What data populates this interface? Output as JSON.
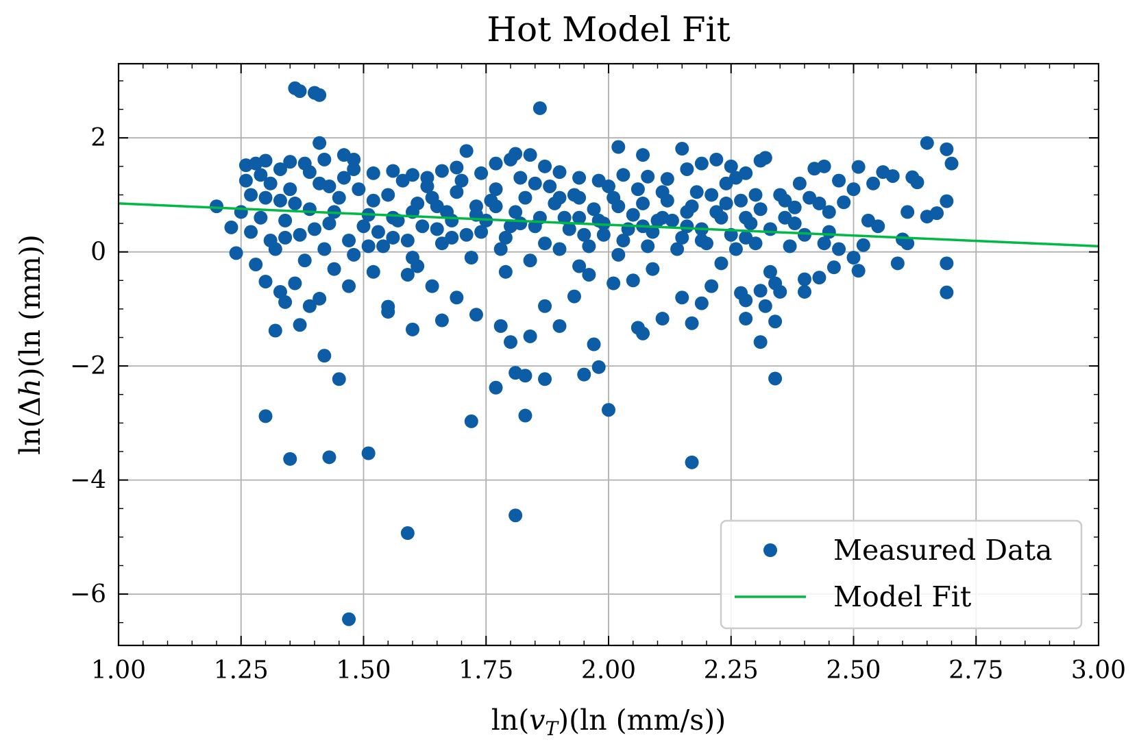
{
  "chart_data": {
    "type": "scatter",
    "title": "Hot Model Fit",
    "xlabel": "ln(v_T)(ln (mm/s))",
    "xlabel_parts": {
      "pre": "ln(",
      "var": "v",
      "sub": "T",
      "post": ")(ln (mm/s))"
    },
    "ylabel": "ln(Δh)(ln (mm))",
    "ylabel_parts": {
      "pre": "ln(Δ",
      "var": "h",
      "post": ")(ln (mm))"
    },
    "xlim": [
      1.0,
      3.0
    ],
    "ylim": [
      -6.9,
      3.3
    ],
    "xticks": [
      "1.00",
      "1.25",
      "1.50",
      "1.75",
      "2.00",
      "2.25",
      "2.50",
      "2.75",
      "3.00"
    ],
    "yticks": [
      "2",
      "0",
      "−2",
      "−4",
      "−6"
    ],
    "grid": true,
    "legend_position": "lower-right",
    "colors": {
      "measured": "#0C5DA5",
      "fit": "#00B945"
    },
    "series": [
      {
        "name": "Measured Data",
        "kind": "scatter",
        "points": [
          [
            1.36,
            2.87
          ],
          [
            1.37,
            2.82
          ],
          [
            1.4,
            2.79
          ],
          [
            1.41,
            2.75
          ],
          [
            1.86,
            2.52
          ],
          [
            1.41,
            1.91
          ],
          [
            2.02,
            1.84
          ],
          [
            2.15,
            1.81
          ],
          [
            2.07,
            1.7
          ],
          [
            1.81,
            1.72
          ],
          [
            1.71,
            1.77
          ],
          [
            2.65,
            1.91
          ],
          [
            2.69,
            1.8
          ],
          [
            2.7,
            1.55
          ],
          [
            2.51,
            1.49
          ],
          [
            2.44,
            1.5
          ],
          [
            2.42,
            1.46
          ],
          [
            2.39,
            1.2
          ],
          [
            2.47,
            1.25
          ],
          [
            2.56,
            1.4
          ],
          [
            2.58,
            1.33
          ],
          [
            2.62,
            1.31
          ],
          [
            2.63,
            1.22
          ],
          [
            2.54,
            1.2
          ],
          [
            2.5,
            1.1
          ],
          [
            2.48,
            0.87
          ],
          [
            2.53,
            0.55
          ],
          [
            2.55,
            0.45
          ],
          [
            2.61,
            0.7
          ],
          [
            2.65,
            0.62
          ],
          [
            2.67,
            0.68
          ],
          [
            2.69,
            0.89
          ],
          [
            2.6,
            0.22
          ],
          [
            2.61,
            0.15
          ],
          [
            2.69,
            -0.2
          ],
          [
            2.69,
            -0.71
          ],
          [
            2.59,
            -0.2
          ],
          [
            2.52,
            0.12
          ],
          [
            2.5,
            -0.1
          ],
          [
            2.51,
            -0.33
          ],
          [
            2.46,
            -0.27
          ],
          [
            2.45,
            0.35
          ],
          [
            2.43,
            -0.45
          ],
          [
            2.4,
            -0.48
          ],
          [
            2.4,
            -0.7
          ],
          [
            2.37,
            0.1
          ],
          [
            2.35,
            -0.7
          ],
          [
            2.34,
            -0.55
          ],
          [
            2.33,
            -0.35
          ],
          [
            2.32,
            -0.95
          ],
          [
            2.31,
            -1.58
          ],
          [
            2.34,
            -1.22
          ],
          [
            2.28,
            -1.17
          ],
          [
            2.28,
            -0.85
          ],
          [
            2.27,
            -0.72
          ],
          [
            2.34,
            -2.22
          ],
          [
            2.31,
            -0.68
          ],
          [
            1.2,
            0.8
          ],
          [
            1.23,
            0.43
          ],
          [
            1.24,
            -0.02
          ],
          [
            1.28,
            -0.22
          ],
          [
            1.3,
            -0.52
          ],
          [
            1.33,
            -0.7
          ],
          [
            1.34,
            -0.88
          ],
          [
            1.36,
            -0.55
          ],
          [
            1.32,
            -1.38
          ],
          [
            1.37,
            -1.28
          ],
          [
            1.39,
            -0.95
          ],
          [
            1.41,
            -0.82
          ],
          [
            1.42,
            -1.82
          ],
          [
            1.45,
            -2.23
          ],
          [
            1.3,
            -2.88
          ],
          [
            1.35,
            -3.63
          ],
          [
            1.43,
            -3.6
          ],
          [
            1.51,
            -3.53
          ],
          [
            1.59,
            -4.93
          ],
          [
            1.47,
            -6.44
          ],
          [
            1.72,
            -2.97
          ],
          [
            1.77,
            -2.38
          ],
          [
            1.81,
            -2.12
          ],
          [
            1.83,
            -2.17
          ],
          [
            1.87,
            -2.23
          ],
          [
            1.83,
            -2.87
          ],
          [
            1.81,
            -4.62
          ],
          [
            1.95,
            -2.15
          ],
          [
            1.98,
            -2.02
          ],
          [
            2.0,
            -2.77
          ],
          [
            1.97,
            -1.62
          ],
          [
            1.8,
            -1.58
          ],
          [
            2.17,
            -3.69
          ],
          [
            1.55,
            -0.96
          ],
          [
            1.55,
            -1.05
          ],
          [
            1.6,
            -1.36
          ],
          [
            1.66,
            -1.2
          ],
          [
            1.73,
            -1.1
          ],
          [
            1.78,
            -1.3
          ],
          [
            1.84,
            -1.48
          ],
          [
            1.87,
            -0.95
          ],
          [
            1.9,
            -1.3
          ],
          [
            1.93,
            -0.78
          ],
          [
            2.06,
            -1.33
          ],
          [
            2.07,
            -1.43
          ],
          [
            2.11,
            -1.17
          ],
          [
            2.15,
            -0.8
          ],
          [
            2.17,
            -1.25
          ],
          [
            2.19,
            -0.9
          ],
          [
            2.21,
            -0.6
          ],
          [
            2.05,
            -0.5
          ],
          [
            2.01,
            -0.55
          ],
          [
            1.96,
            -0.4
          ],
          [
            1.69,
            -0.8
          ],
          [
            1.64,
            -0.6
          ],
          [
            1.59,
            -0.4
          ],
          [
            1.52,
            -0.35
          ],
          [
            1.47,
            -0.6
          ],
          [
            1.26,
            1.52
          ],
          [
            1.28,
            1.55
          ],
          [
            1.3,
            1.6
          ],
          [
            1.33,
            1.45
          ],
          [
            1.35,
            1.58
          ],
          [
            1.38,
            1.55
          ],
          [
            1.42,
            1.62
          ],
          [
            1.46,
            1.7
          ],
          [
            1.48,
            1.62
          ],
          [
            1.52,
            1.38
          ],
          [
            1.56,
            1.42
          ],
          [
            1.6,
            1.35
          ],
          [
            1.63,
            1.3
          ],
          [
            1.66,
            1.42
          ],
          [
            1.69,
            1.48
          ],
          [
            1.74,
            1.38
          ],
          [
            1.77,
            1.55
          ],
          [
            1.8,
            1.62
          ],
          [
            1.84,
            1.7
          ],
          [
            1.87,
            1.5
          ],
          [
            1.9,
            1.4
          ],
          [
            1.94,
            1.3
          ],
          [
            1.98,
            1.25
          ],
          [
            2.03,
            1.35
          ],
          [
            2.08,
            1.32
          ],
          [
            2.12,
            1.28
          ],
          [
            2.16,
            1.45
          ],
          [
            2.19,
            1.55
          ],
          [
            2.22,
            1.62
          ],
          [
            2.25,
            1.5
          ],
          [
            2.28,
            1.38
          ],
          [
            2.31,
            1.6
          ],
          [
            2.32,
            1.65
          ],
          [
            2.35,
            1.0
          ],
          [
            2.36,
            0.9
          ],
          [
            2.38,
            0.78
          ],
          [
            2.41,
            0.95
          ],
          [
            2.43,
            0.85
          ],
          [
            2.45,
            0.7
          ],
          [
            2.38,
            0.5
          ],
          [
            2.4,
            0.3
          ],
          [
            2.44,
            0.15
          ],
          [
            2.47,
            0.05
          ],
          [
            2.36,
            0.6
          ],
          [
            2.33,
            0.4
          ],
          [
            1.26,
            1.25
          ],
          [
            1.27,
            1.0
          ],
          [
            1.29,
            0.6
          ],
          [
            1.31,
            0.2
          ],
          [
            1.33,
            0.9
          ],
          [
            1.35,
            1.1
          ],
          [
            1.37,
            0.3
          ],
          [
            1.39,
            0.75
          ],
          [
            1.41,
            1.2
          ],
          [
            1.43,
            0.5
          ],
          [
            1.45,
            0.95
          ],
          [
            1.47,
            0.2
          ],
          [
            1.49,
            1.1
          ],
          [
            1.51,
            0.65
          ],
          [
            1.53,
            0.35
          ],
          [
            1.55,
            1.0
          ],
          [
            1.57,
            0.55
          ],
          [
            1.59,
            0.2
          ],
          [
            1.61,
            0.85
          ],
          [
            1.63,
            1.15
          ],
          [
            1.65,
            0.4
          ],
          [
            1.67,
            0.7
          ],
          [
            1.69,
            1.05
          ],
          [
            1.71,
            0.3
          ],
          [
            1.73,
            0.8
          ],
          [
            1.75,
            0.55
          ],
          [
            1.77,
            1.1
          ],
          [
            1.79,
            0.25
          ],
          [
            1.81,
            0.7
          ],
          [
            1.83,
            0.95
          ],
          [
            1.85,
            0.45
          ],
          [
            1.87,
            0.15
          ],
          [
            1.89,
            0.85
          ],
          [
            1.91,
            0.6
          ],
          [
            1.93,
            1.0
          ],
          [
            1.95,
            0.3
          ],
          [
            1.97,
            0.75
          ],
          [
            1.99,
            0.5
          ],
          [
            2.01,
            0.95
          ],
          [
            2.03,
            0.2
          ],
          [
            2.05,
            0.65
          ],
          [
            2.07,
            0.85
          ],
          [
            2.09,
            0.35
          ],
          [
            2.11,
            1.05
          ],
          [
            2.13,
            0.55
          ],
          [
            2.15,
            0.25
          ],
          [
            2.17,
            0.8
          ],
          [
            2.19,
            0.4
          ],
          [
            2.21,
            1.0
          ],
          [
            2.23,
            0.6
          ],
          [
            2.25,
            0.3
          ],
          [
            2.27,
            0.9
          ],
          [
            2.29,
            0.5
          ],
          [
            2.3,
            0.15
          ],
          [
            2.31,
            0.75
          ],
          [
            1.27,
            0.35
          ],
          [
            1.3,
            0.95
          ],
          [
            1.32,
            0.05
          ],
          [
            1.34,
            0.55
          ],
          [
            1.36,
            0.85
          ],
          [
            1.38,
            -0.15
          ],
          [
            1.4,
            0.4
          ],
          [
            1.42,
            0.05
          ],
          [
            1.44,
            0.7
          ],
          [
            1.46,
            1.3
          ],
          [
            1.48,
            -0.05
          ],
          [
            1.5,
            0.45
          ],
          [
            1.52,
            0.9
          ],
          [
            1.54,
            0.1
          ],
          [
            1.56,
            0.6
          ],
          [
            1.58,
            1.25
          ],
          [
            1.6,
            -0.1
          ],
          [
            1.62,
            0.45
          ],
          [
            1.64,
            0.95
          ],
          [
            1.66,
            0.15
          ],
          [
            1.68,
            0.55
          ],
          [
            1.7,
            1.25
          ],
          [
            1.72,
            -0.1
          ],
          [
            1.74,
            0.35
          ],
          [
            1.76,
            0.9
          ],
          [
            1.78,
            0.05
          ],
          [
            1.8,
            0.45
          ],
          [
            1.82,
            1.3
          ],
          [
            1.84,
            -0.15
          ],
          [
            1.86,
            0.6
          ],
          [
            1.88,
            1.15
          ],
          [
            1.9,
            0.05
          ],
          [
            1.92,
            0.4
          ],
          [
            1.94,
            0.95
          ],
          [
            1.96,
            0.1
          ],
          [
            1.98,
            0.55
          ],
          [
            2.0,
            1.15
          ],
          [
            2.02,
            -0.05
          ],
          [
            2.04,
            0.4
          ],
          [
            2.06,
            1.1
          ],
          [
            2.08,
            0.1
          ],
          [
            2.1,
            0.55
          ],
          [
            2.12,
            0.9
          ],
          [
            2.14,
            0.05
          ],
          [
            2.16,
            0.45
          ],
          [
            2.18,
            1.05
          ],
          [
            2.2,
            0.15
          ],
          [
            2.22,
            0.7
          ],
          [
            2.24,
            1.2
          ],
          [
            2.26,
            0.05
          ],
          [
            2.28,
            0.6
          ],
          [
            2.3,
            1.0
          ],
          [
            1.25,
            0.7
          ],
          [
            1.29,
            1.35
          ],
          [
            1.44,
            -0.3
          ],
          [
            1.61,
            -0.25
          ],
          [
            1.79,
            -0.35
          ],
          [
            1.94,
            -0.25
          ],
          [
            2.09,
            -0.3
          ],
          [
            2.23,
            -0.2
          ],
          [
            1.31,
            1.2
          ],
          [
            1.48,
            1.45
          ],
          [
            1.65,
            0.8
          ],
          [
            1.82,
            0.5
          ],
          [
            1.99,
            0.3
          ],
          [
            2.16,
            0.7
          ],
          [
            2.26,
            1.3
          ],
          [
            1.34,
            0.25
          ],
          [
            1.51,
            0.1
          ],
          [
            1.68,
            0.25
          ],
          [
            1.85,
            1.2
          ],
          [
            2.02,
            0.8
          ],
          [
            2.19,
            0.2
          ],
          [
            1.39,
            1.4
          ],
          [
            1.56,
            0.25
          ],
          [
            1.73,
            0.65
          ],
          [
            1.9,
            0.95
          ],
          [
            2.07,
            0.45
          ],
          [
            2.24,
            0.85
          ],
          [
            1.43,
            1.15
          ],
          [
            1.6,
            0.7
          ],
          [
            1.77,
            0.8
          ],
          [
            1.94,
            0.6
          ],
          [
            2.11,
            0.6
          ],
          [
            2.28,
            0.25
          ]
        ]
      },
      {
        "name": "Model Fit",
        "kind": "line",
        "points": [
          [
            1.0,
            0.85
          ],
          [
            3.0,
            0.1
          ]
        ]
      }
    ]
  }
}
